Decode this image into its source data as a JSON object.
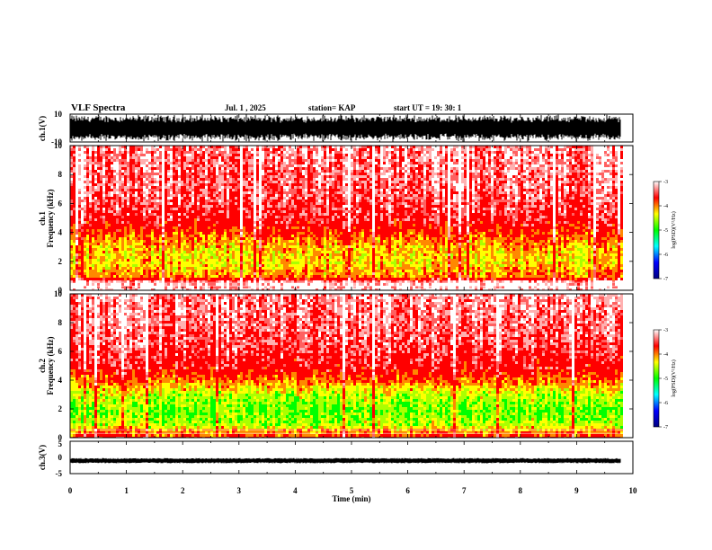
{
  "header": {
    "title": "VLF Spectra",
    "date": "Jul. 1 , 2025",
    "station": "station= KAP",
    "start_ut": "start UT = 19: 30: 1"
  },
  "chart_data": [
    {
      "type": "line",
      "name": "ch1-waveform",
      "ylabel": "ch.1(V)",
      "ylim": [
        -10,
        10
      ],
      "yticks": [
        "10",
        "-10"
      ],
      "xlim": [
        0,
        10
      ],
      "color": "#000000",
      "amplitude_note": "saturated noise band spanning approx -10 to 10 V"
    },
    {
      "type": "heatmap",
      "name": "ch1-spectrogram",
      "ylabel_line1": "ch.1",
      "ylabel_line2": "Frequency (kHz)",
      "ylim": [
        0,
        10
      ],
      "yticks": [
        "0",
        "2",
        "4",
        "6",
        "8",
        "10"
      ],
      "xlim": [
        0,
        9.83
      ],
      "colorbar": {
        "label": "log(PSD)(V²/Hz)",
        "range": [
          -7,
          -3
        ],
        "ticks": [
          "-3",
          "-4",
          "-5",
          "-6",
          "-7"
        ],
        "colors": [
          "#000080",
          "#0000ff",
          "#00ffff",
          "#00ff00",
          "#ffff00",
          "#ff0000",
          "#ffffff"
        ]
      },
      "intensity_profile": [
        {
          "f_khz": 0.0,
          "level": 0.95
        },
        {
          "f_khz": 0.6,
          "level": 0.95
        },
        {
          "f_khz": 1.0,
          "level": 0.72
        },
        {
          "f_khz": 2.0,
          "level": 0.66
        },
        {
          "f_khz": 3.0,
          "level": 0.68
        },
        {
          "f_khz": 4.0,
          "level": 0.75
        },
        {
          "f_khz": 5.0,
          "level": 0.84
        },
        {
          "f_khz": 7.0,
          "level": 0.88
        },
        {
          "f_khz": 10.0,
          "level": 0.9
        }
      ]
    },
    {
      "type": "heatmap",
      "name": "ch2-spectrogram",
      "ylabel_line1": "ch.2",
      "ylabel_line2": "Frequency (kHz)",
      "ylim": [
        0,
        10
      ],
      "yticks": [
        "0",
        "2",
        "4",
        "6",
        "8",
        "10"
      ],
      "xlim": [
        0,
        9.83
      ],
      "colorbar": {
        "label": "log(PSD)(V²/Hz)",
        "range": [
          -7,
          -3
        ],
        "ticks": [
          "-3",
          "-4",
          "-5",
          "-6",
          "-7"
        ],
        "colors": [
          "#000080",
          "#0000ff",
          "#00ffff",
          "#00ff00",
          "#ffff00",
          "#ff0000",
          "#ffffff"
        ]
      },
      "intensity_profile": [
        {
          "f_khz": 0.0,
          "level": 0.78
        },
        {
          "f_khz": 0.6,
          "level": 0.7
        },
        {
          "f_khz": 1.0,
          "level": 0.6
        },
        {
          "f_khz": 2.0,
          "level": 0.56
        },
        {
          "f_khz": 3.0,
          "level": 0.6
        },
        {
          "f_khz": 4.0,
          "level": 0.72
        },
        {
          "f_khz": 5.0,
          "level": 0.82
        },
        {
          "f_khz": 7.0,
          "level": 0.87
        },
        {
          "f_khz": 10.0,
          "level": 0.9
        }
      ]
    },
    {
      "type": "line",
      "name": "ch3-waveform",
      "ylabel": "ch.3(V)",
      "ylim": [
        -5,
        5
      ],
      "yticks": [
        "5",
        "0",
        "-5"
      ],
      "xlim": [
        0,
        10
      ],
      "xlabel": "Time (min)",
      "xticks": [
        "0",
        "1",
        "2",
        "3",
        "4",
        "5",
        "6",
        "7",
        "8",
        "9",
        "10"
      ],
      "color": "#000000",
      "amplitude_note": "narrow band around -1 V (approx -1.5 to -0.5 V)"
    }
  ]
}
